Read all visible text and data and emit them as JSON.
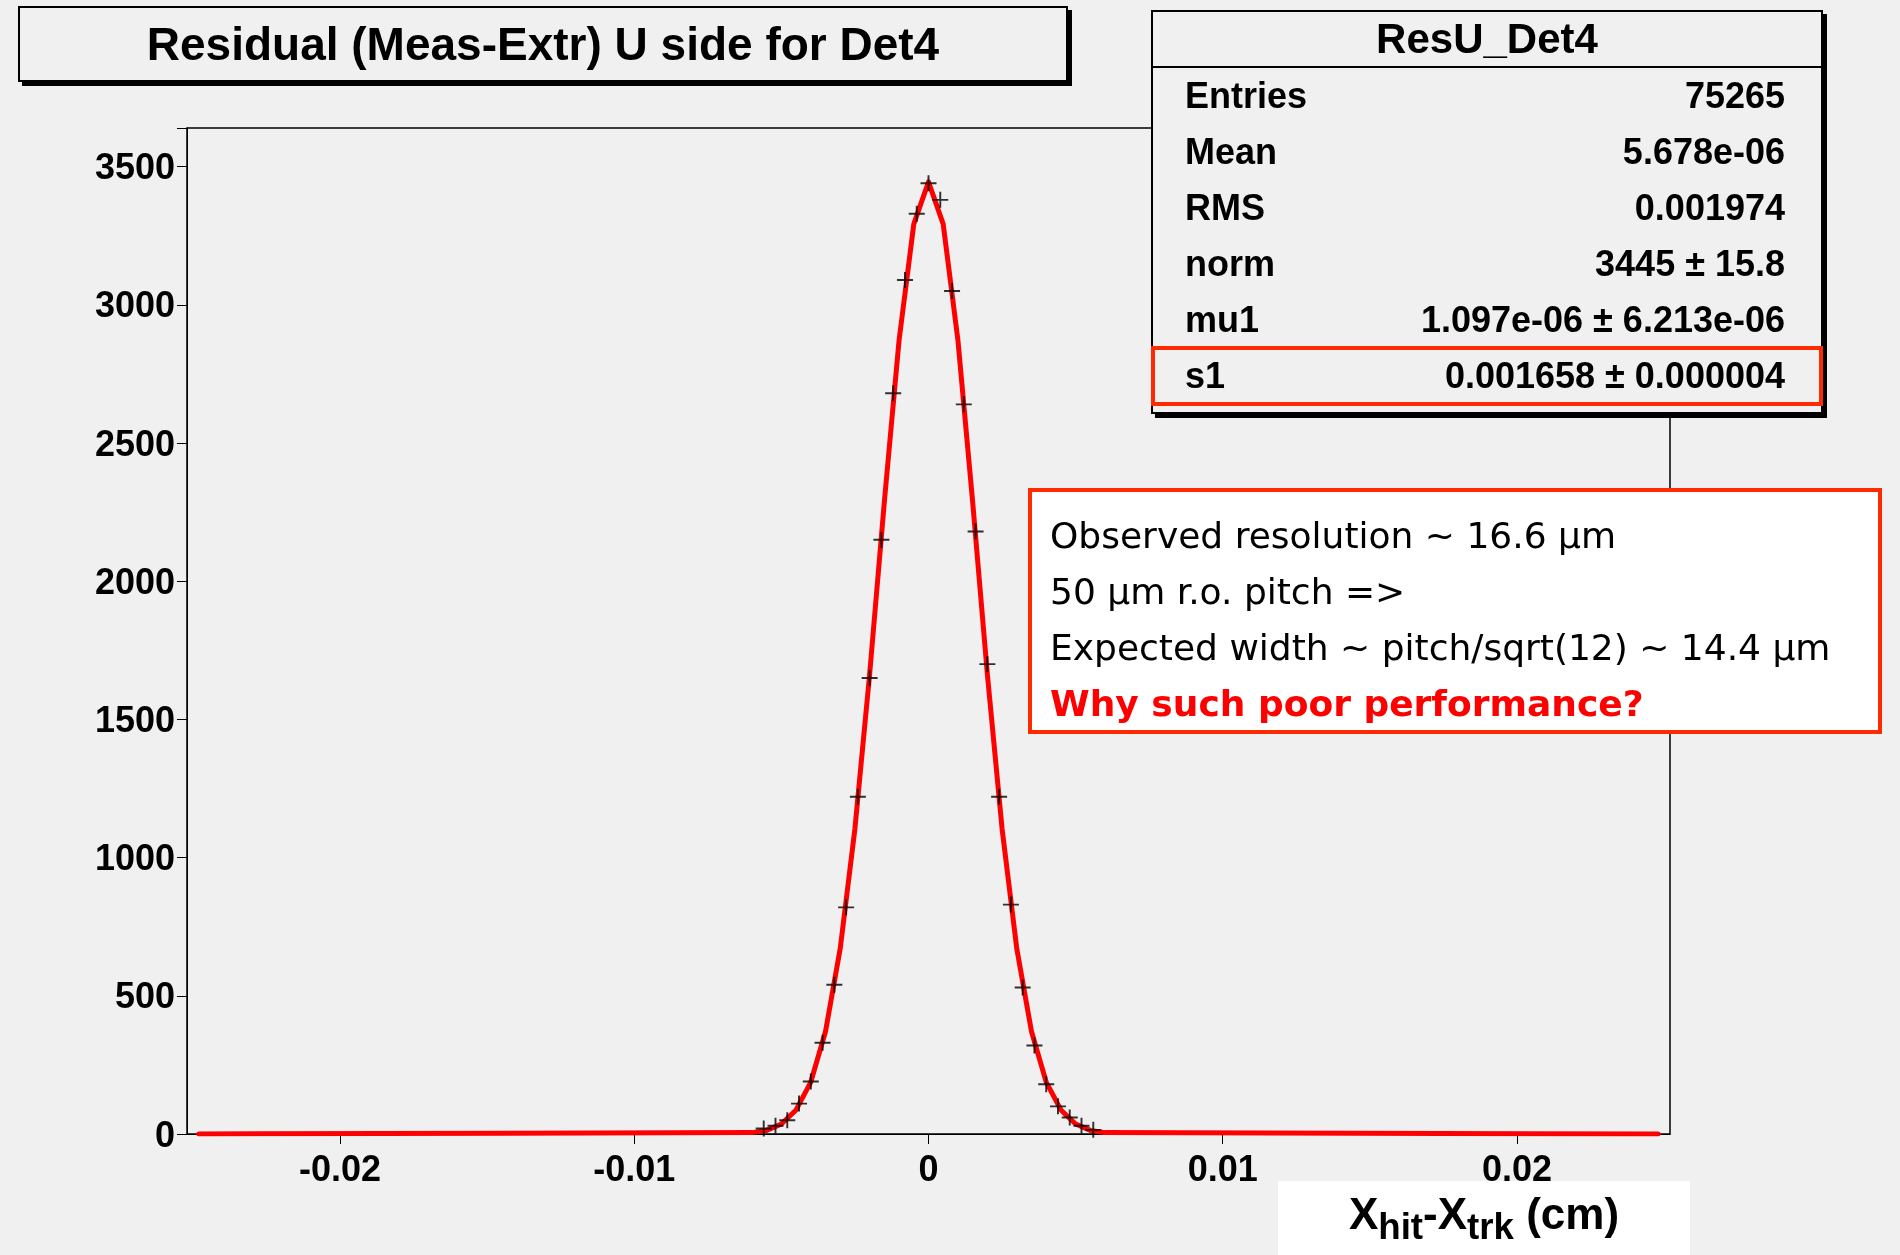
{
  "chart_data": {
    "type": "scatter",
    "title": "Residual (Meas-Extr) U side for Det4",
    "xlabel": "X$_{hit}$-X$_{trk}$ (cm)",
    "xlim": [
      -0.0252,
      0.0252
    ],
    "xticks": [
      -0.02,
      -0.01,
      0,
      0.01,
      0.02
    ],
    "ylim": [
      0,
      3640
    ],
    "yticks": [
      0,
      500,
      1000,
      1500,
      2000,
      2500,
      3000,
      3500
    ],
    "marker": "cross",
    "series": [
      {
        "color": "#000000",
        "x": [
          -0.0056,
          -0.0052,
          -0.0048,
          -0.0044,
          -0.004,
          -0.0036,
          -0.0032,
          -0.0028,
          -0.0024,
          -0.002,
          -0.0016,
          -0.0012,
          -0.0008,
          -0.0004,
          0,
          0.0004,
          0.0008,
          0.0012,
          0.0016,
          0.002,
          0.0024,
          0.0028,
          0.0032,
          0.0036,
          0.004,
          0.0044,
          0.0048,
          0.0052,
          0.0056
        ],
        "values": [
          20,
          30,
          50,
          110,
          190,
          330,
          540,
          820,
          1220,
          1650,
          2150,
          2680,
          3090,
          3330,
          3440,
          3380,
          3050,
          2640,
          2180,
          1700,
          1220,
          830,
          530,
          320,
          180,
          100,
          60,
          30,
          15
        ]
      },
      {
        "type": "line",
        "color": "#ff0000",
        "line_style": "solid",
        "marker": "none",
        "x": [
          -0.0248,
          -0.006,
          -0.0055,
          -0.005,
          -0.0045,
          -0.004,
          -0.0035,
          -0.003,
          -0.0025,
          -0.002,
          -0.0015,
          -0.001,
          -0.0005,
          0,
          0.0005,
          0.001,
          0.0015,
          0.002,
          0.0025,
          0.003,
          0.0035,
          0.004,
          0.0045,
          0.005,
          0.0055,
          0.006,
          0.0248
        ],
        "values": [
          0,
          5,
          13,
          36,
          87,
          188,
          371,
          671,
          1105,
          1664,
          2288,
          2872,
          3292,
          3445,
          3292,
          2872,
          2288,
          1664,
          1105,
          671,
          371,
          188,
          87,
          36,
          13,
          5,
          0
        ]
      }
    ],
    "annotations": [
      "ResU_Det4",
      "Entries",
      "75265",
      "Mean",
      "5.678e-06",
      "RMS",
      "0.001974",
      "norm",
      "3445 ± 15.8",
      "mu1",
      "1.097e-06 ± 6.213e-06",
      "s1",
      "0.001658 ± 0.000004",
      "Observed resolution ~ 16.6 µm",
      "50 µm r.o. pitch =>",
      "Expected width ~ pitch/sqrt(12) ~ 14.4 µm",
      "Why such poor performance?"
    ]
  }
}
